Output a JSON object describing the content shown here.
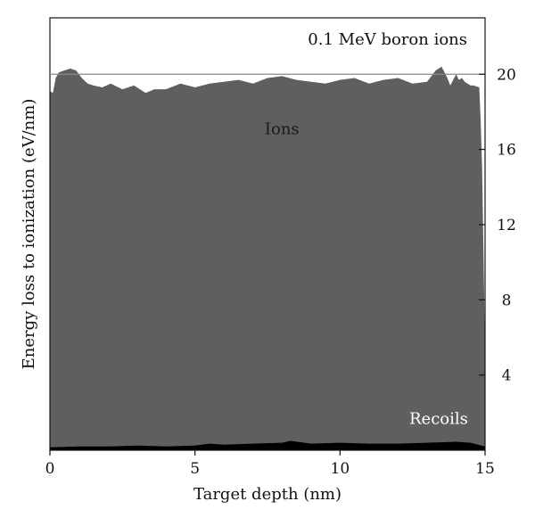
{
  "chart_data": {
    "type": "area",
    "title": "0.1 MeV boron ions",
    "xlabel": "Target depth (nm)",
    "ylabel": "Energy loss to ionization (eV/nm)",
    "xlim": [
      0,
      15
    ],
    "ylim": [
      0,
      23
    ],
    "x_ticks": [
      0,
      5,
      10,
      15
    ],
    "y_ticks": [
      4,
      8,
      12,
      16,
      20
    ],
    "y_axis_side": "right",
    "reference_line": 20,
    "grid": false,
    "fill_color": "#5f5f5f",
    "recoil_color": "#000000",
    "series": [
      {
        "name": "Ions",
        "x": [
          0,
          0.1,
          0.2,
          0.3,
          0.5,
          0.7,
          0.9,
          1.1,
          1.3,
          1.5,
          1.8,
          2.1,
          2.5,
          2.9,
          3.3,
          3.6,
          4.0,
          4.5,
          5.0,
          5.5,
          6.0,
          6.5,
          7.0,
          7.5,
          8.0,
          8.5,
          9.0,
          9.5,
          10.0,
          10.5,
          11.0,
          11.5,
          12.0,
          12.5,
          13.0,
          13.3,
          13.5,
          13.7,
          13.8,
          14.0,
          14.1,
          14.2,
          14.3,
          14.5,
          14.6,
          14.8,
          14.85,
          14.9,
          14.95,
          15.0
        ],
        "values": [
          19.1,
          19.0,
          19.8,
          20.1,
          20.2,
          20.3,
          20.2,
          19.8,
          19.5,
          19.4,
          19.3,
          19.5,
          19.2,
          19.4,
          19.0,
          19.2,
          19.2,
          19.5,
          19.3,
          19.5,
          19.6,
          19.7,
          19.5,
          19.8,
          19.9,
          19.7,
          19.6,
          19.5,
          19.7,
          19.8,
          19.5,
          19.7,
          19.8,
          19.5,
          19.6,
          20.2,
          20.4,
          19.8,
          19.4,
          20.0,
          19.7,
          19.8,
          19.6,
          19.4,
          19.4,
          19.3,
          17.5,
          15.0,
          10.0,
          5.0
        ]
      },
      {
        "name": "Recoils",
        "x": [
          0,
          1,
          2,
          3,
          4,
          5,
          5.5,
          6,
          7,
          8,
          8.3,
          9,
          10,
          11,
          12,
          13,
          14,
          14.5,
          15
        ],
        "values": [
          0.15,
          0.2,
          0.2,
          0.25,
          0.2,
          0.25,
          0.35,
          0.3,
          0.35,
          0.4,
          0.5,
          0.35,
          0.4,
          0.35,
          0.35,
          0.4,
          0.45,
          0.4,
          0.2
        ]
      }
    ],
    "annotations": [
      {
        "text": "Ions",
        "x": 8.0,
        "y": 16.8,
        "color": "#1a1a1a"
      },
      {
        "text": "Recoils",
        "x": 13.4,
        "y": 1.4,
        "color": "#ffffff"
      }
    ]
  }
}
